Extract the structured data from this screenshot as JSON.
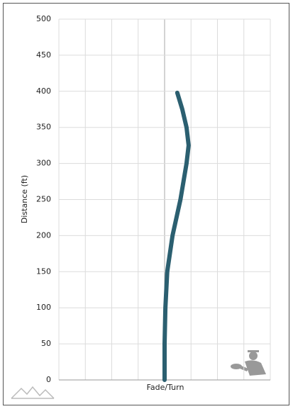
{
  "chart_data": {
    "type": "line",
    "x_label": "Fade/Turn",
    "y_label": "Distance (ft)",
    "series": [
      {
        "color": "#2b5f70",
        "x": [
          0,
          0,
          0.03,
          0.1,
          0.3,
          0.6,
          0.83,
          0.91,
          0.83,
          0.67,
          0.48
        ],
        "values": [
          0,
          50,
          100,
          150,
          200,
          250,
          300,
          325,
          350,
          375,
          398
        ]
      }
    ],
    "xlim": [
      -4,
      4
    ],
    "ylim": [
      0,
      500
    ],
    "yticks": [
      0,
      50,
      100,
      150,
      200,
      250,
      300,
      350,
      400,
      450,
      500
    ],
    "grid": true
  }
}
